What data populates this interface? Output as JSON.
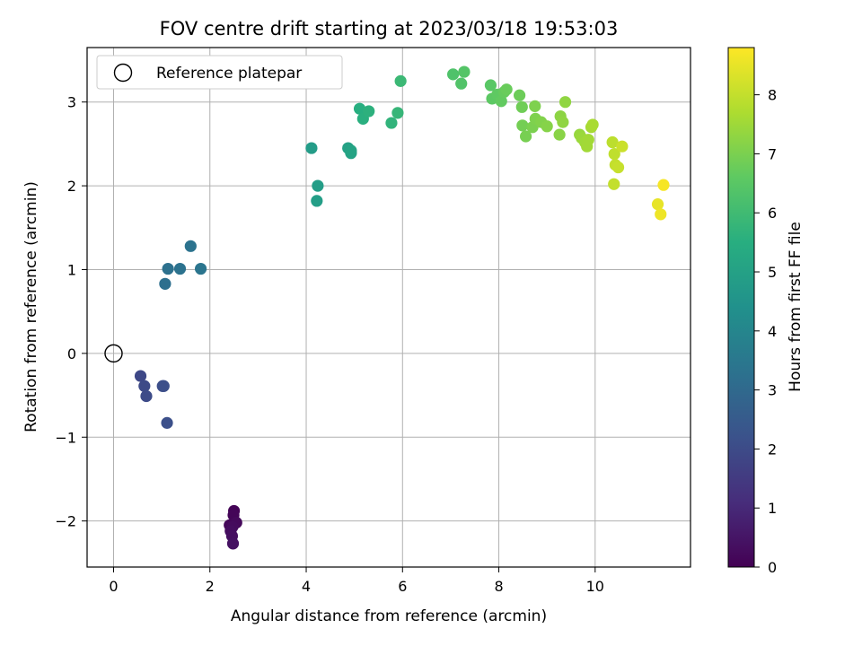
{
  "chart_data": {
    "type": "scatter",
    "title": "FOV centre drift starting at 2023/03/18 19:53:03",
    "xlabel": "Angular distance from reference (arcmin)",
    "ylabel": "Rotation from reference (arcmin)",
    "xlim": [
      -0.55,
      11.98
    ],
    "ylim": [
      -2.55,
      3.65
    ],
    "xticks": [
      0,
      2,
      4,
      6,
      8,
      10
    ],
    "yticks": [
      -2,
      -1,
      0,
      1,
      2,
      3
    ],
    "xtick_labels": [
      "0",
      "2",
      "4",
      "6",
      "8",
      "10"
    ],
    "ytick_labels": [
      "−2",
      "−1",
      "0",
      "1",
      "2",
      "3"
    ],
    "grid": true,
    "legend": {
      "placement": "top-left",
      "entries": [
        "Reference platepar"
      ]
    },
    "reference_point": {
      "x": 0,
      "y": 0,
      "label": "Reference platepar"
    },
    "colorbar": {
      "label": "Hours from first FF file",
      "min": 0,
      "max": 8.8,
      "ticks": [
        0,
        1,
        2,
        3,
        4,
        5,
        6,
        7,
        8
      ],
      "tick_labels": [
        "0",
        "1",
        "2",
        "3",
        "4",
        "5",
        "6",
        "7",
        "8"
      ],
      "colormap": "viridis"
    },
    "points": [
      {
        "x": 2.5,
        "y": -1.88,
        "t": 0.05
      },
      {
        "x": 2.49,
        "y": -1.93,
        "t": 0.1
      },
      {
        "x": 2.41,
        "y": -2.05,
        "t": 0.15
      },
      {
        "x": 2.55,
        "y": -2.02,
        "t": 0.2
      },
      {
        "x": 2.47,
        "y": -2.07,
        "t": 0.25
      },
      {
        "x": 2.43,
        "y": -2.12,
        "t": 0.3
      },
      {
        "x": 2.46,
        "y": -2.18,
        "t": 0.35
      },
      {
        "x": 2.48,
        "y": -2.27,
        "t": 0.4
      },
      {
        "x": 0.56,
        "y": -0.27,
        "t": 1.9
      },
      {
        "x": 0.64,
        "y": -0.39,
        "t": 1.95
      },
      {
        "x": 0.68,
        "y": -0.51,
        "t": 2.0
      },
      {
        "x": 1.02,
        "y": -0.39,
        "t": 2.05
      },
      {
        "x": 1.04,
        "y": -0.39,
        "t": 2.1
      },
      {
        "x": 1.11,
        "y": -0.83,
        "t": 2.15
      },
      {
        "x": 1.07,
        "y": 0.83,
        "t": 3.2
      },
      {
        "x": 1.13,
        "y": 1.01,
        "t": 3.25
      },
      {
        "x": 1.38,
        "y": 1.01,
        "t": 3.3
      },
      {
        "x": 1.6,
        "y": 1.28,
        "t": 3.35
      },
      {
        "x": 1.81,
        "y": 1.01,
        "t": 3.4
      },
      {
        "x": 4.11,
        "y": 2.45,
        "t": 4.8
      },
      {
        "x": 4.24,
        "y": 2.0,
        "t": 4.85
      },
      {
        "x": 4.22,
        "y": 1.82,
        "t": 4.9
      },
      {
        "x": 4.87,
        "y": 2.45,
        "t": 5.0
      },
      {
        "x": 4.93,
        "y": 2.39,
        "t": 5.05
      },
      {
        "x": 4.93,
        "y": 2.42,
        "t": 5.1
      },
      {
        "x": 5.11,
        "y": 2.92,
        "t": 5.5
      },
      {
        "x": 5.18,
        "y": 2.8,
        "t": 5.55
      },
      {
        "x": 5.3,
        "y": 2.89,
        "t": 5.6
      },
      {
        "x": 5.77,
        "y": 2.75,
        "t": 5.7
      },
      {
        "x": 5.9,
        "y": 2.87,
        "t": 5.8
      },
      {
        "x": 5.96,
        "y": 3.25,
        "t": 5.9
      },
      {
        "x": 7.05,
        "y": 3.33,
        "t": 6.3
      },
      {
        "x": 7.22,
        "y": 3.22,
        "t": 6.35
      },
      {
        "x": 7.28,
        "y": 3.36,
        "t": 6.4
      },
      {
        "x": 7.83,
        "y": 3.2,
        "t": 6.5
      },
      {
        "x": 7.86,
        "y": 3.04,
        "t": 6.55
      },
      {
        "x": 7.97,
        "y": 3.09,
        "t": 6.6
      },
      {
        "x": 8.05,
        "y": 3.01,
        "t": 6.65
      },
      {
        "x": 8.11,
        "y": 3.12,
        "t": 6.7
      },
      {
        "x": 8.16,
        "y": 3.15,
        "t": 6.75
      },
      {
        "x": 8.43,
        "y": 3.08,
        "t": 6.8
      },
      {
        "x": 8.48,
        "y": 2.94,
        "t": 6.85
      },
      {
        "x": 8.49,
        "y": 2.72,
        "t": 6.9
      },
      {
        "x": 8.56,
        "y": 2.59,
        "t": 6.95
      },
      {
        "x": 8.7,
        "y": 2.7,
        "t": 7.0
      },
      {
        "x": 8.75,
        "y": 2.95,
        "t": 7.05
      },
      {
        "x": 8.76,
        "y": 2.8,
        "t": 7.05
      },
      {
        "x": 8.88,
        "y": 2.76,
        "t": 7.1
      },
      {
        "x": 9.0,
        "y": 2.71,
        "t": 7.15
      },
      {
        "x": 9.26,
        "y": 2.61,
        "t": 7.2
      },
      {
        "x": 9.28,
        "y": 2.83,
        "t": 7.25
      },
      {
        "x": 9.33,
        "y": 2.76,
        "t": 7.3
      },
      {
        "x": 9.38,
        "y": 3.0,
        "t": 7.3
      },
      {
        "x": 9.68,
        "y": 2.61,
        "t": 7.4
      },
      {
        "x": 9.72,
        "y": 2.57,
        "t": 7.45
      },
      {
        "x": 9.79,
        "y": 2.52,
        "t": 7.5
      },
      {
        "x": 9.83,
        "y": 2.47,
        "t": 7.55
      },
      {
        "x": 9.86,
        "y": 2.55,
        "t": 7.55
      },
      {
        "x": 9.92,
        "y": 2.7,
        "t": 7.6
      },
      {
        "x": 9.95,
        "y": 2.73,
        "t": 7.65
      },
      {
        "x": 10.36,
        "y": 2.52,
        "t": 7.9
      },
      {
        "x": 10.4,
        "y": 2.38,
        "t": 7.95
      },
      {
        "x": 10.42,
        "y": 2.25,
        "t": 8.0
      },
      {
        "x": 10.48,
        "y": 2.22,
        "t": 8.05
      },
      {
        "x": 10.56,
        "y": 2.47,
        "t": 8.1
      },
      {
        "x": 10.39,
        "y": 2.02,
        "t": 8.0
      },
      {
        "x": 11.3,
        "y": 1.78,
        "t": 8.5
      },
      {
        "x": 11.36,
        "y": 1.66,
        "t": 8.6
      },
      {
        "x": 11.42,
        "y": 2.01,
        "t": 8.7
      }
    ]
  }
}
